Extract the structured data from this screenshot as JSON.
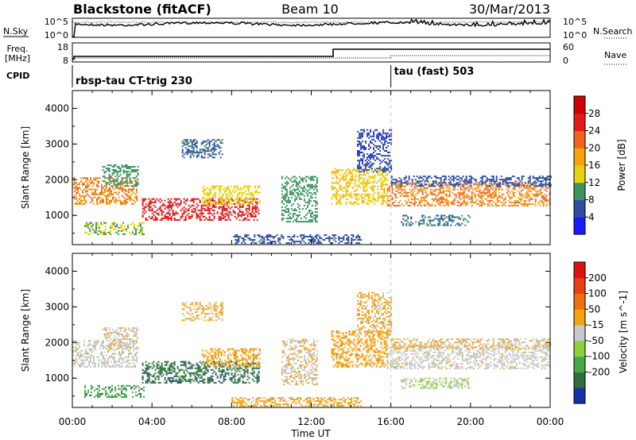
{
  "header": {
    "title": "Blackstone (fitACF)",
    "beam": "Beam 10",
    "date": "30/Mar/2013"
  },
  "noise_panel": {
    "left_label": "N.Sky",
    "left_ticks": [
      "10^5",
      "10^0"
    ],
    "right_ticks": [
      "10^5",
      "10^0"
    ],
    "right_label": "N.Search"
  },
  "freq_panel": {
    "left_label_1": "Freq.",
    "left_label_2": "[MHz]",
    "left_ticks": [
      "18",
      "8"
    ],
    "right_ticks": [
      "60",
      "0"
    ],
    "right_label": "Nave"
  },
  "cpid_panel": {
    "label": "CPID",
    "mode_1": "rbsp-tau CT-trig 230",
    "mode_2": "tau (fast) 503",
    "switch_time_h": 16
  },
  "x_axis": {
    "title": "Time UT",
    "ticks": [
      "00:00",
      "04:00",
      "08:00",
      "12:00",
      "16:00",
      "20:00",
      "00:00"
    ],
    "tick_hours": [
      0,
      4,
      8,
      12,
      16,
      20,
      24
    ],
    "range_h": [
      0,
      24
    ]
  },
  "chart_data": [
    {
      "type": "heatmap",
      "id": "power",
      "ylabel": "Slant Range [km]",
      "yticks": [
        "1000",
        "2000",
        "3000",
        "4000"
      ],
      "ytick_values": [
        1000,
        2000,
        3000,
        4000
      ],
      "ylim": [
        180,
        4500
      ],
      "colorbar": {
        "label": "Power [dB]",
        "ticks": [
          "4",
          "8",
          "12",
          "16",
          "20",
          "24",
          "28"
        ],
        "tick_values": [
          4,
          8,
          12,
          16,
          20,
          24,
          28
        ],
        "range": [
          0,
          32
        ],
        "colors": [
          "#1a1aff",
          "#2e4fa0",
          "#3c9460",
          "#e8d210",
          "#f5a410",
          "#f0641e",
          "#e21a1a",
          "#d00000"
        ]
      },
      "bands": [
        {
          "t": [
            0.0,
            3.2
          ],
          "r": [
            1300,
            2050
          ],
          "level": 20
        },
        {
          "t": [
            1.5,
            3.3
          ],
          "r": [
            1800,
            2400
          ],
          "level": 10
        },
        {
          "t": [
            0.6,
            3.6
          ],
          "r": [
            450,
            800
          ],
          "level": 12
        },
        {
          "t": [
            3.5,
            9.4
          ],
          "r": [
            850,
            1450
          ],
          "level": 27
        },
        {
          "t": [
            6.5,
            9.4
          ],
          "r": [
            1300,
            1800
          ],
          "level": 14
        },
        {
          "t": [
            5.5,
            7.5
          ],
          "r": [
            2600,
            3100
          ],
          "level": 7
        },
        {
          "t": [
            10.5,
            12.3
          ],
          "r": [
            800,
            2100
          ],
          "level": 10
        },
        {
          "t": [
            13.0,
            15.8
          ],
          "r": [
            1300,
            2300
          ],
          "level": 15
        },
        {
          "t": [
            14.3,
            16.0
          ],
          "r": [
            2200,
            3400
          ],
          "level": 5
        },
        {
          "t": [
            15.8,
            24.0
          ],
          "r": [
            1250,
            1900
          ],
          "level": 20
        },
        {
          "t": [
            16.0,
            24.0
          ],
          "r": [
            1800,
            2100
          ],
          "level": 6
        },
        {
          "t": [
            16.5,
            20.0
          ],
          "r": [
            700,
            1000
          ],
          "level": 8
        },
        {
          "t": [
            8.0,
            14.5
          ],
          "r": [
            200,
            450
          ],
          "level": 6
        }
      ]
    },
    {
      "type": "heatmap",
      "id": "velocity",
      "ylabel": "Slant Range [km]",
      "yticks": [
        "1000",
        "2000",
        "3000",
        "4000"
      ],
      "ytick_values": [
        1000,
        2000,
        3000,
        4000
      ],
      "ylim": [
        180,
        4500
      ],
      "colorbar": {
        "label": "Velocity [m s^-1]",
        "ticks": [
          "200",
          "100",
          "50",
          "-15",
          "-50",
          "-100",
          "-200"
        ],
        "tick_values": [
          200,
          100,
          50,
          -15,
          -50,
          -100,
          -200
        ],
        "range": [
          -250,
          250
        ],
        "colors": [
          "#1530a8",
          "#2e6e3c",
          "#44a84a",
          "#8ad23a",
          "#c8c8c8",
          "#f5a410",
          "#f07010",
          "#e84014",
          "#e01010"
        ]
      },
      "bands": [
        {
          "t": [
            0.0,
            3.2
          ],
          "r": [
            1300,
            2050
          ],
          "level": 0
        },
        {
          "t": [
            1.5,
            3.3
          ],
          "r": [
            1800,
            2400
          ],
          "level": 10
        },
        {
          "t": [
            0.6,
            3.6
          ],
          "r": [
            450,
            800
          ],
          "level": -120
        },
        {
          "t": [
            3.5,
            9.4
          ],
          "r": [
            850,
            1450
          ],
          "level": -170
        },
        {
          "t": [
            6.5,
            9.4
          ],
          "r": [
            1300,
            1800
          ],
          "level": 60
        },
        {
          "t": [
            5.5,
            7.5
          ],
          "r": [
            2600,
            3100
          ],
          "level": 40
        },
        {
          "t": [
            10.5,
            12.3
          ],
          "r": [
            800,
            2100
          ],
          "level": 20
        },
        {
          "t": [
            13.0,
            15.8
          ],
          "r": [
            1300,
            2300
          ],
          "level": 60
        },
        {
          "t": [
            14.3,
            16.0
          ],
          "r": [
            2200,
            3400
          ],
          "level": 40
        },
        {
          "t": [
            15.8,
            24.0
          ],
          "r": [
            1250,
            1900
          ],
          "level": 0
        },
        {
          "t": [
            16.0,
            24.0
          ],
          "r": [
            1800,
            2100
          ],
          "level": 30
        },
        {
          "t": [
            16.5,
            20.0
          ],
          "r": [
            700,
            1000
          ],
          "level": -30
        },
        {
          "t": [
            8.0,
            14.5
          ],
          "r": [
            200,
            450
          ],
          "level": 50
        }
      ]
    }
  ]
}
